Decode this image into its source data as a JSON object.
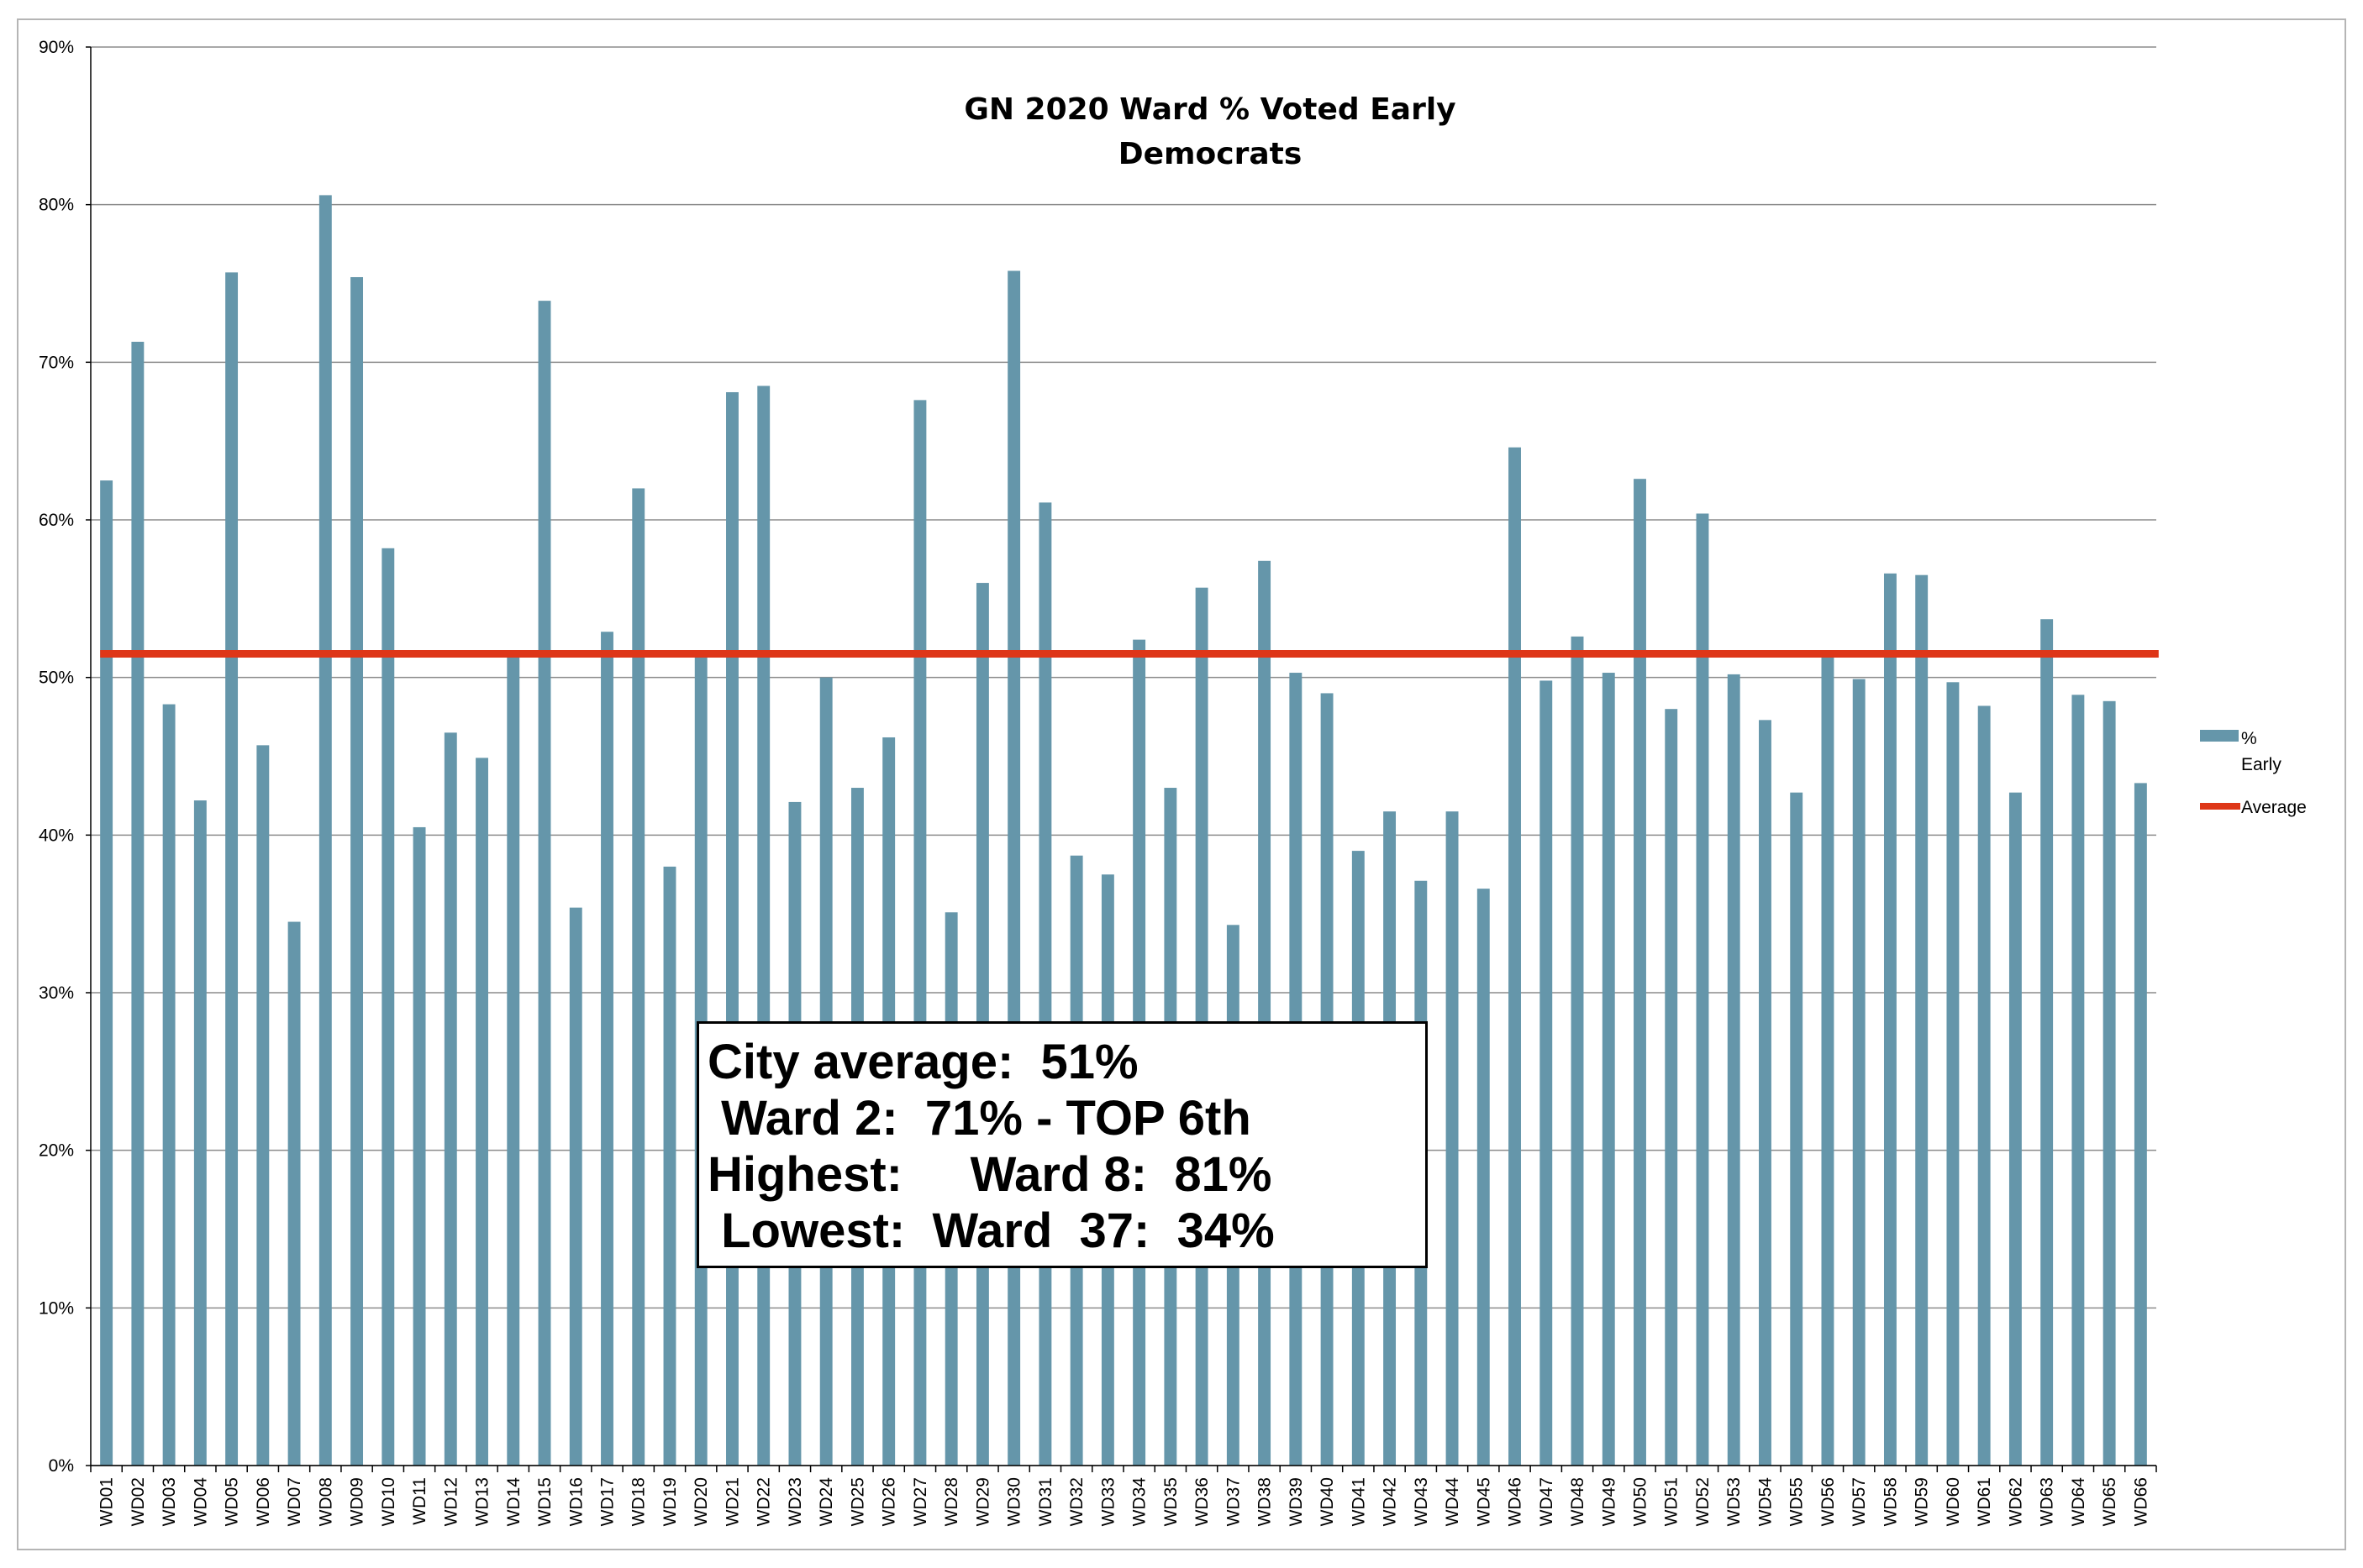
{
  "chart_data": {
    "type": "bar",
    "title": "GN 2020 Ward % Voted Early",
    "subtitle": "Democrats",
    "xlabel": "",
    "ylabel": "",
    "ylim": [
      0,
      90
    ],
    "yticks": [
      "0%",
      "10%",
      "20%",
      "30%",
      "40%",
      "50%",
      "60%",
      "70%",
      "80%",
      "90%"
    ],
    "grid": true,
    "legend_position": "right",
    "categories": [
      "WD01",
      "WD02",
      "WD03",
      "WD04",
      "WD05",
      "WD06",
      "WD07",
      "WD08",
      "WD09",
      "WD10",
      "WD11",
      "WD12",
      "WD13",
      "WD14",
      "WD15",
      "WD16",
      "WD17",
      "WD18",
      "WD19",
      "WD20",
      "WD21",
      "WD22",
      "WD23",
      "WD24",
      "WD25",
      "WD26",
      "WD27",
      "WD28",
      "WD29",
      "WD30",
      "WD31",
      "WD32",
      "WD33",
      "WD34",
      "WD35",
      "WD36",
      "WD37",
      "WD38",
      "WD39",
      "WD40",
      "WD41",
      "WD42",
      "WD43",
      "WD44",
      "WD45",
      "WD46",
      "WD47",
      "WD48",
      "WD49",
      "WD50",
      "WD51",
      "WD52",
      "WD53",
      "WD54",
      "WD55",
      "WD56",
      "WD57",
      "WD58",
      "WD59",
      "WD60",
      "WD61",
      "WD62",
      "WD63",
      "WD64",
      "WD65",
      "WD66"
    ],
    "series": [
      {
        "name": "% Early",
        "legend_lines": [
          "%",
          "Early"
        ],
        "color": "#6596aa",
        "values": [
          62.5,
          71.3,
          48.3,
          42.2,
          75.7,
          45.7,
          34.5,
          80.6,
          75.4,
          58.2,
          40.5,
          46.5,
          44.9,
          51.5,
          73.9,
          35.4,
          52.9,
          62.0,
          38.0,
          51.5,
          68.1,
          68.5,
          42.1,
          50.0,
          43.0,
          46.2,
          67.6,
          35.1,
          56.0,
          75.8,
          61.1,
          38.7,
          37.5,
          52.4,
          43.0,
          55.7,
          34.3,
          57.4,
          50.3,
          49.0,
          39.0,
          41.5,
          37.1,
          41.5,
          36.6,
          64.6,
          49.8,
          52.6,
          50.3,
          62.6,
          48.0,
          60.4,
          50.2,
          47.3,
          42.7,
          51.5,
          49.9,
          56.6,
          56.5,
          49.7,
          48.2,
          42.7,
          53.7,
          48.9,
          48.5,
          43.3
        ]
      }
    ],
    "average": {
      "name": "Average",
      "value": 51.5,
      "color": "#de3618"
    },
    "annotations": [
      "City average:  51%",
      " Ward 2:  71% - TOP 6th",
      "Highest:     Ward 8:  81%",
      " Lowest:  Ward  37:  34%"
    ]
  }
}
